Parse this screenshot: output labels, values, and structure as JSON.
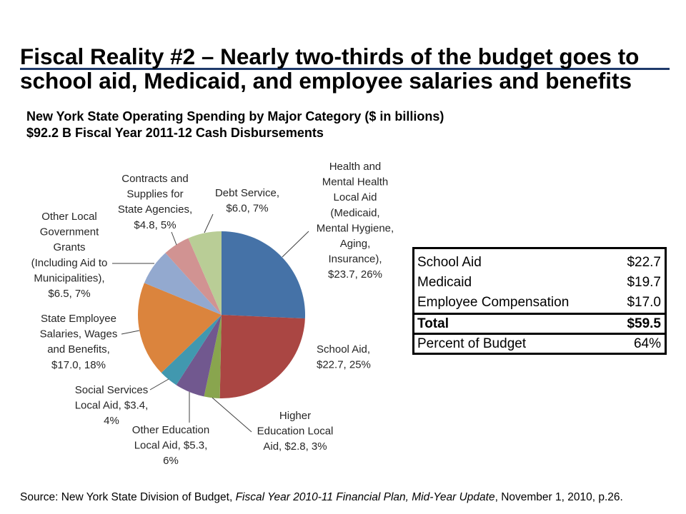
{
  "slide": {
    "title": {
      "line1": "Fiscal Reality #2 – Nearly two-thirds of the budget goes to",
      "line2": "school aid, Medicaid, and employee salaries and benefits"
    },
    "subtitle": {
      "line1": "New York State Operating Spending by Major Category ($ in billions)",
      "line2": "$92.2 B Fiscal Year 2011-12 Cash Disbursements"
    },
    "source": {
      "prefix": "Source: New York State Division of Budget, ",
      "publication": "Fiscal Year 2010-11 Financial Plan, Mid-Year Update",
      "suffix": ", November 1, 2010, p.26."
    },
    "colors": {
      "title_rule": "#1F3A6B",
      "leader_line": "#404040",
      "table_border": "#000000"
    }
  },
  "chart_data": {
    "type": "pie",
    "slices": [
      {
        "label_lines": [
          "Health and",
          "Mental Health",
          "Local Aid",
          "(Medicaid,",
          "Mental Hygiene,",
          "Aging,",
          "Insurance),",
          "$23.7, 26%"
        ],
        "value": 23.7,
        "percent": 26,
        "color": "#4572A7"
      },
      {
        "label_lines": [
          "School Aid,",
          "$22.7, 25%"
        ],
        "value": 22.7,
        "percent": 25,
        "color": "#AA4643"
      },
      {
        "label_lines": [
          "Higher",
          "Education Local",
          "Aid, $2.8, 3%"
        ],
        "value": 2.8,
        "percent": 3,
        "color": "#89A54E"
      },
      {
        "label_lines": [
          "Other Education",
          "Local Aid, $5.3,",
          "6%"
        ],
        "value": 5.3,
        "percent": 6,
        "color": "#71588F"
      },
      {
        "label_lines": [
          "Social Services",
          "Local Aid, $3.4,",
          "4%"
        ],
        "value": 3.4,
        "percent": 4,
        "color": "#4198AF"
      },
      {
        "label_lines": [
          "State Employee",
          "Salaries, Wages",
          "and Benefits,",
          "$17.0, 18%"
        ],
        "value": 17.0,
        "percent": 18,
        "color": "#DB843D"
      },
      {
        "label_lines": [
          "Other Local",
          "Government",
          "Grants",
          "(Including Aid to",
          "Municipalities),",
          "$6.5, 7%"
        ],
        "value": 6.5,
        "percent": 7,
        "color": "#93A9CF"
      },
      {
        "label_lines": [
          "Contracts and",
          "Supplies for",
          "State Agencies,",
          "$4.8, 5%"
        ],
        "value": 4.8,
        "percent": 5,
        "color": "#D19392"
      },
      {
        "label_lines": [
          "Debt Service,",
          "$6.0, 7%"
        ],
        "value": 6.0,
        "percent": 7,
        "color": "#B9CD96"
      }
    ]
  },
  "summary_table": {
    "rows": [
      {
        "label": "School Aid",
        "value": "$22.7"
      },
      {
        "label": "Medicaid",
        "value": "$19.7"
      },
      {
        "label": "Employee Compensation",
        "value": "$17.0"
      },
      {
        "label": "Total",
        "value": "$59.5"
      },
      {
        "label": "Percent of Budget",
        "value": "64%"
      }
    ]
  }
}
